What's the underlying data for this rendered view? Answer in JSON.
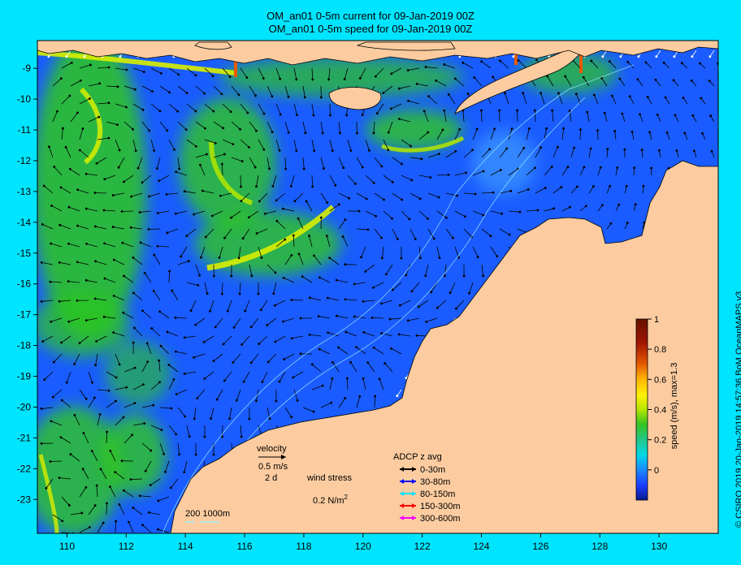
{
  "title_line1": "OM_an01 0-5m current for 09-Jan-2019 00Z",
  "title_line2": "OM_an01 0-5m speed for 09-Jan-2019 00Z",
  "credit": "© CSIRO 2019   20-Jan-2019 14:57:36 BoM OceanMAPS v3",
  "colors": {
    "background": "#00e5ff",
    "land": "#fccca0",
    "low_speed": "#1a5cff",
    "mid_speed": "#2ec71e",
    "high_speed": "#f0f000",
    "outline": "#000000"
  },
  "axes": {
    "x_ticks": [
      "110",
      "112",
      "114",
      "116",
      "118",
      "120",
      "122",
      "124",
      "126",
      "128",
      "130"
    ],
    "y_ticks": [
      "-9",
      "-10",
      "-11",
      "-12",
      "-13",
      "-14",
      "-15",
      "-16",
      "-17",
      "-18",
      "-19",
      "-20",
      "-21",
      "-22",
      "-23"
    ],
    "lon_range": [
      109,
      132
    ],
    "lat_range": [
      -24.1,
      -8.1
    ]
  },
  "colorbar": {
    "label": "speed (m/s), max=1.3",
    "ticks": [
      "0",
      "0.2",
      "0.4",
      "0.6",
      "0.8",
      "1"
    ],
    "range": [
      -0.2,
      1.0
    ],
    "colors": [
      "#0a1a8c",
      "#1a3cff",
      "#1a8cff",
      "#00d8e6",
      "#22c78c",
      "#37c322",
      "#b4e600",
      "#fff000",
      "#ffb400",
      "#e65a00",
      "#a01400",
      "#641400"
    ]
  },
  "legend": {
    "velocity_label": "velocity",
    "velocity_scale": "0.5 m/s",
    "velocity_time": "2 d",
    "wind_label": "wind stress",
    "wind_scale_prefix": "0.2 N/m",
    "wind_scale_exp": "2",
    "adcp_title": "ADCP z avg",
    "adcp": [
      {
        "label": "0-30m",
        "color": "#000000"
      },
      {
        "label": "30-80m",
        "color": "#0000ff"
      },
      {
        "label": "80-150m",
        "color": "#00e5ff"
      },
      {
        "label": "150-300m",
        "color": "#ff0000"
      },
      {
        "label": "300-600m",
        "color": "#ff00ff"
      }
    ],
    "isobaths": "200  1000m"
  }
}
